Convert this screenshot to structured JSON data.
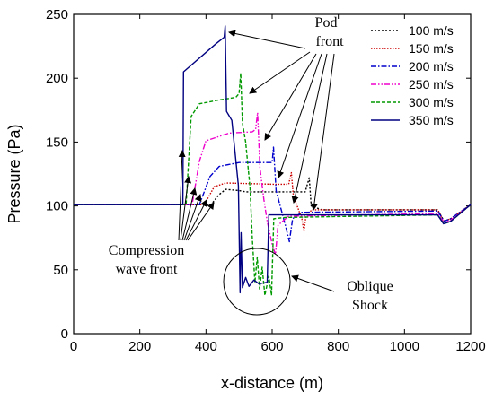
{
  "chart_data": {
    "type": "line",
    "xlabel": "x-distance (m)",
    "ylabel": "Pressure (Pa)",
    "xlim": [
      0,
      1200
    ],
    "ylim": [
      0,
      250
    ],
    "xticks": [
      0,
      200,
      400,
      600,
      800,
      1000,
      1200
    ],
    "yticks": [
      0,
      50,
      100,
      150,
      200,
      250
    ],
    "grid": false,
    "legend_position": "top-right",
    "series": [
      {
        "name": "100 m/s",
        "color": "#000000",
        "dash": "dot",
        "points": [
          [
            0,
            101
          ],
          [
            415,
            101
          ],
          [
            440,
            109
          ],
          [
            460,
            113
          ],
          [
            500,
            112
          ],
          [
            520,
            111
          ],
          [
            700,
            111
          ],
          [
            712,
            122
          ],
          [
            718,
            100
          ],
          [
            750,
            97
          ],
          [
            1100,
            97
          ],
          [
            1120,
            88
          ],
          [
            1140,
            90
          ],
          [
            1200,
            101
          ]
        ]
      },
      {
        "name": "150 m/s",
        "color": "#cc0000",
        "dash": "dot-fine",
        "points": [
          [
            0,
            101
          ],
          [
            395,
            101
          ],
          [
            425,
            115
          ],
          [
            460,
            118
          ],
          [
            600,
            117
          ],
          [
            650,
            117
          ],
          [
            658,
            126
          ],
          [
            664,
            108
          ],
          [
            690,
            90
          ],
          [
            696,
            80
          ],
          [
            702,
            92
          ],
          [
            720,
            97
          ],
          [
            1100,
            97
          ],
          [
            1120,
            88
          ],
          [
            1140,
            90
          ],
          [
            1200,
            101
          ]
        ]
      },
      {
        "name": "200 m/s",
        "color": "#0000cc",
        "dash": "dashdot",
        "points": [
          [
            0,
            101
          ],
          [
            380,
            101
          ],
          [
            412,
            123
          ],
          [
            440,
            131
          ],
          [
            500,
            134
          ],
          [
            560,
            134
          ],
          [
            600,
            134
          ],
          [
            604,
            146
          ],
          [
            612,
            112
          ],
          [
            640,
            85
          ],
          [
            652,
            72
          ],
          [
            662,
            90
          ],
          [
            690,
            95
          ],
          [
            1100,
            96
          ],
          [
            1120,
            88
          ],
          [
            1140,
            90
          ],
          [
            1200,
            101
          ]
        ]
      },
      {
        "name": "250 m/s",
        "color": "#ee00cc",
        "dash": "dashdotdot",
        "points": [
          [
            0,
            101
          ],
          [
            358,
            101
          ],
          [
            380,
            135
          ],
          [
            400,
            151
          ],
          [
            470,
            157
          ],
          [
            540,
            158
          ],
          [
            550,
            160
          ],
          [
            556,
            173
          ],
          [
            563,
            130
          ],
          [
            575,
            105
          ],
          [
            585,
            88
          ],
          [
            600,
            70
          ],
          [
            610,
            62
          ],
          [
            618,
            85
          ],
          [
            650,
            92
          ],
          [
            1100,
            94
          ],
          [
            1120,
            87
          ],
          [
            1140,
            89
          ],
          [
            1200,
            101
          ]
        ]
      },
      {
        "name": "300 m/s",
        "color": "#009900",
        "dash": "dash",
        "points": [
          [
            0,
            101
          ],
          [
            340,
            101
          ],
          [
            355,
            170
          ],
          [
            380,
            180
          ],
          [
            440,
            183
          ],
          [
            490,
            185
          ],
          [
            500,
            188
          ],
          [
            505,
            204
          ],
          [
            510,
            165
          ],
          [
            520,
            150
          ],
          [
            533,
            115
          ],
          [
            540,
            75
          ],
          [
            548,
            40
          ],
          [
            555,
            60
          ],
          [
            562,
            35
          ],
          [
            570,
            52
          ],
          [
            578,
            30
          ],
          [
            590,
            45
          ],
          [
            598,
            30
          ],
          [
            605,
            90
          ],
          [
            640,
            91
          ],
          [
            1100,
            93
          ],
          [
            1120,
            86
          ],
          [
            1140,
            88
          ],
          [
            1200,
            101
          ]
        ]
      },
      {
        "name": "350 m/s",
        "color": "#000080",
        "dash": "solid",
        "points": [
          [
            0,
            101
          ],
          [
            330,
            101
          ],
          [
            332,
            205
          ],
          [
            430,
            227
          ],
          [
            455,
            232
          ],
          [
            458,
            241
          ],
          [
            462,
            174
          ],
          [
            478,
            167
          ],
          [
            498,
            116
          ],
          [
            503,
            32
          ],
          [
            506,
            79
          ],
          [
            510,
            36
          ],
          [
            520,
            44
          ],
          [
            530,
            37
          ],
          [
            545,
            42
          ],
          [
            560,
            39
          ],
          [
            580,
            40
          ],
          [
            585,
            40
          ],
          [
            590,
            93
          ],
          [
            1100,
            93
          ],
          [
            1118,
            86
          ],
          [
            1140,
            88
          ],
          [
            1200,
            101
          ]
        ]
      }
    ],
    "annotations": [
      {
        "text_lines": [
          "Pod",
          "front"
        ]
      },
      {
        "text_lines": [
          "Compression",
          "wave front"
        ]
      },
      {
        "text_lines": [
          "Oblique",
          "Shock"
        ]
      }
    ]
  }
}
